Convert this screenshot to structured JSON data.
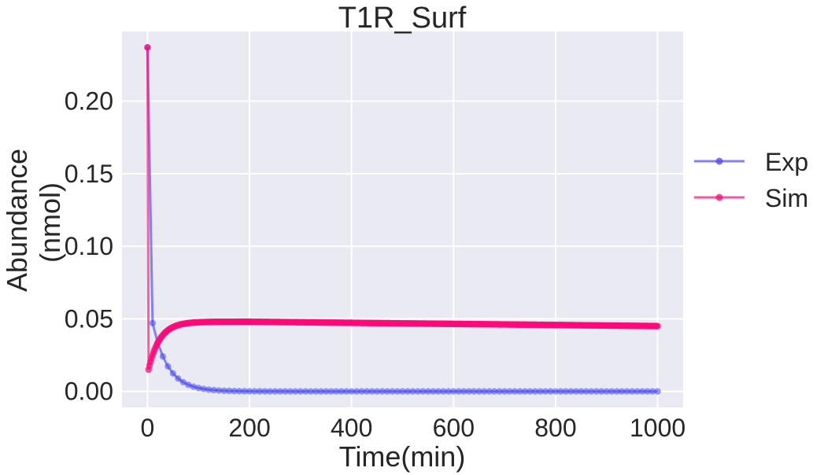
{
  "chart_data": {
    "type": "line",
    "title": "T1R_Surf",
    "xlabel": "Time(min)",
    "ylabel_lines": [
      "Abundance",
      "(nmol)"
    ],
    "xlim": [
      -50,
      1050
    ],
    "ylim": [
      -0.011,
      0.248
    ],
    "xticks": [
      0,
      200,
      400,
      600,
      800,
      1000
    ],
    "xtick_labels": [
      "0",
      "200",
      "400",
      "600",
      "800",
      "1000"
    ],
    "yticks": [
      0.0,
      0.05,
      0.1,
      0.15,
      0.2
    ],
    "ytick_labels": [
      "0.00",
      "0.05",
      "0.10",
      "0.15",
      "0.20"
    ],
    "grid": true,
    "legend_position": "right-outside",
    "series": [
      {
        "name": "Exp",
        "color": "#4a4af0",
        "model": {
          "kind": "exp_decay",
          "y0": 0.237,
          "y_first": 0.047,
          "tau": 30,
          "x_step": 10,
          "x_end": 1000
        },
        "sample_points": [
          [
            0,
            0.237
          ],
          [
            10,
            0.047
          ],
          [
            20,
            0.04
          ],
          [
            30,
            0.035
          ],
          [
            50,
            0.024
          ],
          [
            100,
            0.007
          ],
          [
            200,
            0.001
          ],
          [
            400,
            0.0
          ],
          [
            1000,
            0.0
          ]
        ]
      },
      {
        "name": "Sim",
        "color": "#ff0a78",
        "model": {
          "kind": "rise_plateau",
          "y0": 0.237,
          "y_dip": 0.015,
          "y_peak": 0.048,
          "y_end": 0.045,
          "tau": 22,
          "x_step": 2,
          "x_end": 1000
        },
        "sample_points": [
          [
            0,
            0.237
          ],
          [
            2,
            0.015
          ],
          [
            10,
            0.03
          ],
          [
            40,
            0.044
          ],
          [
            100,
            0.0475
          ],
          [
            200,
            0.048
          ],
          [
            500,
            0.047
          ],
          [
            1000,
            0.045
          ]
        ]
      }
    ]
  }
}
